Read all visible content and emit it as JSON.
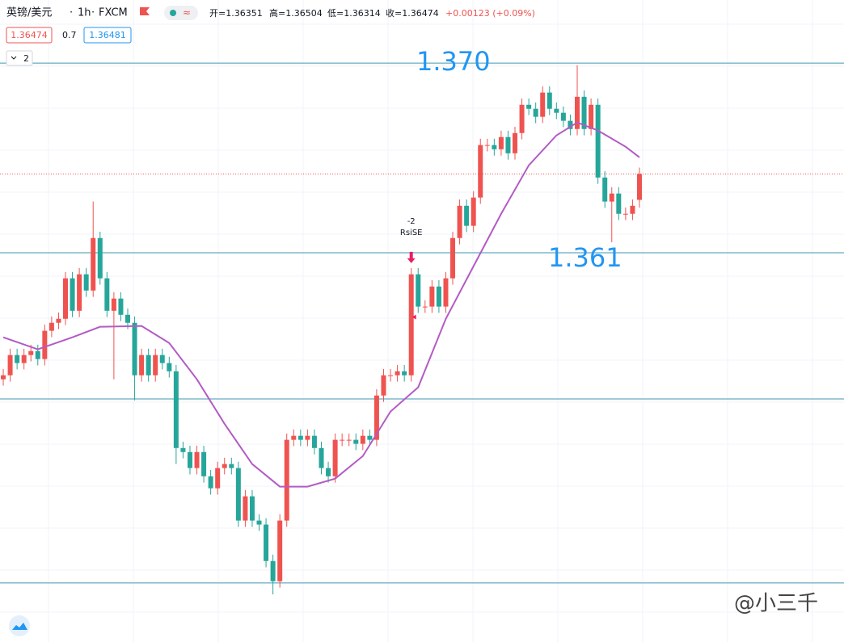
{
  "header": {
    "symbol": "英镑/美元",
    "interval": "1h",
    "exchange": "FXCM",
    "ohlc": [
      "开=1.36351",
      "高=1.36504",
      "低=1.36314",
      "收=1.36474"
    ],
    "change": "+0.00123 (+0.09%)",
    "bid": "1.36474",
    "spread": "0.7",
    "ask": "1.36481",
    "collapse": "2"
  },
  "watermark": "@小三千",
  "chart_data": {
    "type": "candlestick",
    "up_color": "#ef5350",
    "down_color": "#26a69a",
    "ylim": [
      1.34254,
      1.37299
    ],
    "xlim": [
      -0.47,
      121.58
    ],
    "x": [
      0,
      1,
      2,
      3,
      4,
      5,
      6,
      7,
      8,
      9,
      10,
      11,
      12,
      13,
      14,
      15,
      16,
      17,
      18,
      19,
      20,
      21,
      22,
      23,
      24,
      25,
      26,
      27,
      28,
      29,
      30,
      31,
      32,
      33,
      34,
      35,
      36,
      37,
      38,
      39,
      40,
      41,
      42,
      43,
      44,
      45,
      46,
      47,
      48,
      49,
      50,
      51,
      52,
      53,
      54,
      55,
      56,
      57,
      58,
      59,
      60,
      61,
      62,
      63,
      64,
      65,
      66,
      67,
      68,
      69,
      70,
      71,
      72,
      73,
      74,
      75,
      76,
      77,
      78,
      79,
      80,
      81,
      82,
      83,
      84,
      85,
      86,
      87,
      88,
      89,
      90,
      91,
      92
    ],
    "open": [
      1.355,
      1.35519,
      1.35615,
      1.35577,
      1.35615,
      1.35634,
      1.35596,
      1.3573,
      1.35768,
      1.35787,
      1.35979,
      1.35825,
      1.35998,
      1.35921,
      1.3617,
      1.35979,
      1.35825,
      1.35883,
      1.35806,
      1.35768,
      1.35519,
      1.35615,
      1.35519,
      1.35615,
      1.35577,
      1.35538,
      1.35174,
      1.35155,
      1.35079,
      1.35155,
      1.3504,
      1.34983,
      1.35079,
      1.35098,
      1.35079,
      1.3483,
      1.34945,
      1.3483,
      1.34811,
      1.34638,
      1.34542,
      1.3483,
      1.35213,
      1.35232,
      1.35213,
      1.35232,
      1.35174,
      1.35079,
      1.3504,
      1.35213,
      1.35213,
      1.35213,
      1.35194,
      1.35232,
      1.35213,
      1.35423,
      1.35519,
      1.35519,
      1.35538,
      1.35519,
      1.35998,
      1.35845,
      1.35845,
      1.3594,
      1.35845,
      1.35979,
      1.3617,
      1.36323,
      1.36228,
      1.36362,
      1.36611,
      1.36611,
      1.36591,
      1.36649,
      1.36572,
      1.36668,
      1.36802,
      1.36783,
      1.36745,
      1.3686,
      1.36783,
      1.36764,
      1.36726,
      1.36687,
      1.3684,
      1.36687,
      1.36802,
      1.36457,
      1.36343,
      1.36381,
      1.36285,
      1.36285,
      1.36351
    ],
    "high": [
      1.35549,
      1.35645,
      1.35645,
      1.35645,
      1.35664,
      1.35664,
      1.3576,
      1.35798,
      1.35817,
      1.36009,
      1.36009,
      1.36028,
      1.36028,
      1.36343,
      1.362,
      1.36009,
      1.35913,
      1.35913,
      1.35836,
      1.35798,
      1.35645,
      1.35645,
      1.35645,
      1.35645,
      1.35607,
      1.35568,
      1.35204,
      1.35185,
      1.35185,
      1.35185,
      1.3507,
      1.35109,
      1.35128,
      1.35128,
      1.35109,
      1.34975,
      1.34975,
      1.3486,
      1.34841,
      1.34668,
      1.3486,
      1.35243,
      1.35262,
      1.35262,
      1.35262,
      1.35262,
      1.35204,
      1.35109,
      1.35243,
      1.35243,
      1.35243,
      1.35243,
      1.35262,
      1.35262,
      1.35453,
      1.35549,
      1.35549,
      1.35568,
      1.35568,
      1.36028,
      1.36028,
      1.35875,
      1.3597,
      1.3597,
      1.36009,
      1.362,
      1.36353,
      1.36353,
      1.36392,
      1.36641,
      1.36641,
      1.36641,
      1.36679,
      1.36679,
      1.36698,
      1.36832,
      1.36832,
      1.36813,
      1.3689,
      1.3689,
      1.36813,
      1.36794,
      1.36756,
      1.3699,
      1.3687,
      1.36832,
      1.36832,
      1.36487,
      1.36411,
      1.36411,
      1.36315,
      1.36353,
      1.36504
    ],
    "low": [
      1.3547,
      1.35489,
      1.35547,
      1.35547,
      1.35585,
      1.35566,
      1.35566,
      1.357,
      1.35738,
      1.35757,
      1.35795,
      1.35795,
      1.35891,
      1.35891,
      1.35949,
      1.35795,
      1.355,
      1.35776,
      1.35738,
      1.354,
      1.35489,
      1.35489,
      1.35489,
      1.35547,
      1.35508,
      1.35098,
      1.35125,
      1.35049,
      1.35049,
      1.3501,
      1.34953,
      1.34953,
      1.35049,
      1.35049,
      1.348,
      1.348,
      1.348,
      1.34781,
      1.34608,
      1.3448,
      1.34512,
      1.348,
      1.35183,
      1.35183,
      1.35183,
      1.35144,
      1.35049,
      1.3501,
      1.3501,
      1.35183,
      1.35183,
      1.35164,
      1.35164,
      1.35183,
      1.35183,
      1.35393,
      1.35489,
      1.35489,
      1.35489,
      1.35489,
      1.35815,
      1.35815,
      1.35815,
      1.35815,
      1.35815,
      1.35949,
      1.3614,
      1.36198,
      1.36198,
      1.36332,
      1.36581,
      1.36561,
      1.36561,
      1.36542,
      1.36542,
      1.36638,
      1.36753,
      1.36715,
      1.36715,
      1.36753,
      1.36734,
      1.36696,
      1.36657,
      1.36657,
      1.36657,
      1.36657,
      1.36427,
      1.36313,
      1.3615,
      1.36255,
      1.36255,
      1.36255,
      1.36314
    ],
    "close": [
      1.35519,
      1.35615,
      1.35577,
      1.35615,
      1.35634,
      1.35596,
      1.3573,
      1.35768,
      1.35787,
      1.35979,
      1.35825,
      1.35998,
      1.35921,
      1.3617,
      1.35979,
      1.35825,
      1.35883,
      1.35806,
      1.35768,
      1.35519,
      1.35615,
      1.35519,
      1.35615,
      1.35577,
      1.35538,
      1.35174,
      1.35155,
      1.35079,
      1.35155,
      1.3504,
      1.34983,
      1.35079,
      1.35098,
      1.35079,
      1.3483,
      1.34945,
      1.3483,
      1.34811,
      1.34638,
      1.34542,
      1.3483,
      1.35213,
      1.35232,
      1.35213,
      1.35232,
      1.35174,
      1.35079,
      1.3504,
      1.35213,
      1.35213,
      1.35213,
      1.35194,
      1.35232,
      1.35213,
      1.35423,
      1.35519,
      1.35519,
      1.35538,
      1.35519,
      1.35998,
      1.35845,
      1.35845,
      1.3594,
      1.35845,
      1.35979,
      1.3617,
      1.36323,
      1.36228,
      1.36362,
      1.36611,
      1.36611,
      1.36591,
      1.36649,
      1.36572,
      1.36668,
      1.36802,
      1.36783,
      1.36745,
      1.3686,
      1.36783,
      1.36764,
      1.36726,
      1.36687,
      1.3684,
      1.36687,
      1.36802,
      1.36457,
      1.36343,
      1.36381,
      1.36285,
      1.36285,
      1.36323,
      1.36474
    ],
    "ma": {
      "color": "#b35bc4",
      "x": [
        0,
        5,
        10,
        14,
        20,
        24,
        28,
        32,
        36,
        40,
        44,
        48,
        52,
        56,
        60,
        64,
        68,
        72,
        76,
        80,
        83,
        86,
        90,
        92
      ],
      "values": [
        1.35699,
        1.35642,
        1.35699,
        1.35749,
        1.35753,
        1.35672,
        1.355,
        1.35289,
        1.35098,
        1.34991,
        1.34991,
        1.35029,
        1.35136,
        1.35347,
        1.35462,
        1.35787,
        1.36036,
        1.36285,
        1.36515,
        1.36657,
        1.36718,
        1.3668,
        1.36603,
        1.36553
      ]
    },
    "levels": [
      {
        "value": 1.37,
        "label": "1.370"
      },
      1.361,
      1.35407,
      1.34534
    ],
    "level_color": "#3f96b0",
    "signal": {
      "x": 59,
      "line1": "-2",
      "line2": "RsiSE"
    }
  }
}
